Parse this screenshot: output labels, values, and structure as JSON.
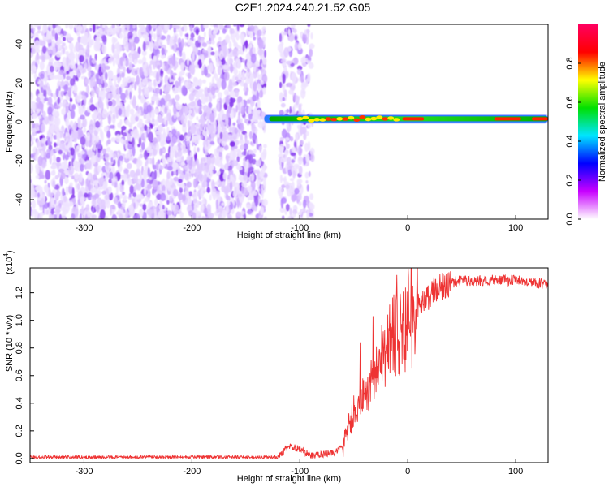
{
  "title": "C2E1.2024.240.21.52.G05",
  "chart_data": [
    {
      "type": "heatmap",
      "xlabel": "Height of straight line (km)",
      "ylabel": "Frequency (Hz)",
      "xlim": [
        -350,
        130
      ],
      "ylim": [
        -50,
        50
      ],
      "x_ticks": [
        "-300",
        "-200",
        "-100",
        "0",
        "100"
      ],
      "x_tick_values": [
        -300,
        -200,
        -100,
        0,
        100
      ],
      "y_ticks": [
        "40",
        "20",
        "0",
        "-20",
        "-40"
      ],
      "y_tick_values": [
        40,
        20,
        0,
        -20,
        -40
      ],
      "colorbar": {
        "label": "Normalized spectral amplitude",
        "range": [
          0,
          1
        ],
        "ticks": [
          "0.0",
          "0.2",
          "0.4",
          "0.6",
          "0.8"
        ],
        "tick_values": [
          0.0,
          0.2,
          0.4,
          0.6,
          0.8
        ],
        "colors": [
          "#ffffff",
          "#c800ff",
          "#0000ff",
          "#00e5ff",
          "#00e000",
          "#ffff00",
          "#ff0000",
          "#ff0060"
        ]
      },
      "regions": [
        {
          "description": "noise",
          "x_range": [
            -350,
            -132
          ],
          "amplitude": 0.15
        },
        {
          "description": "noise",
          "x_range": [
            -118,
            -88
          ],
          "amplitude": 0.1
        },
        {
          "description": "signal line",
          "x_range": [
            -133,
            130
          ],
          "frequency": 1.5
        }
      ]
    },
    {
      "type": "line",
      "xlabel": "Height of straight line (km)",
      "ylabel": "SNR (10 * v/v)",
      "y_multiplier": "(x10",
      "y_multiplier_exp": "4",
      "y_multiplier_close": ")",
      "xlim": [
        -350,
        130
      ],
      "ylim": [
        -0.03,
        1.38
      ],
      "x_ticks": [
        "-300",
        "-200",
        "-100",
        "0",
        "100"
      ],
      "x_tick_values": [
        -300,
        -200,
        -100,
        0,
        100
      ],
      "y_ticks": [
        "0.0",
        "0.2",
        "0.4",
        "0.6",
        "0.8",
        "1.0",
        "1.2"
      ],
      "y_tick_values": [
        0.0,
        0.2,
        0.4,
        0.6,
        0.8,
        1.0,
        1.2
      ],
      "color": "#ee3333",
      "series": [
        {
          "x": [
            -350,
            -300,
            -200,
            -120,
            -110,
            -100,
            -90,
            -70,
            -60,
            -55,
            -50,
            -45,
            -40,
            -35,
            -30,
            -25,
            -20,
            -15,
            -10,
            -5,
            0,
            10,
            20,
            30,
            40,
            50,
            60,
            80,
            100,
            110,
            120,
            130
          ],
          "y": [
            0.01,
            0.01,
            0.01,
            0.01,
            0.09,
            0.07,
            0.02,
            0.04,
            0.08,
            0.22,
            0.35,
            0.38,
            0.44,
            0.53,
            0.62,
            0.71,
            0.81,
            0.85,
            0.88,
            0.95,
            1.0,
            1.1,
            1.18,
            1.24,
            1.27,
            1.29,
            1.29,
            1.29,
            1.29,
            1.28,
            1.27,
            1.26
          ]
        }
      ]
    }
  ]
}
